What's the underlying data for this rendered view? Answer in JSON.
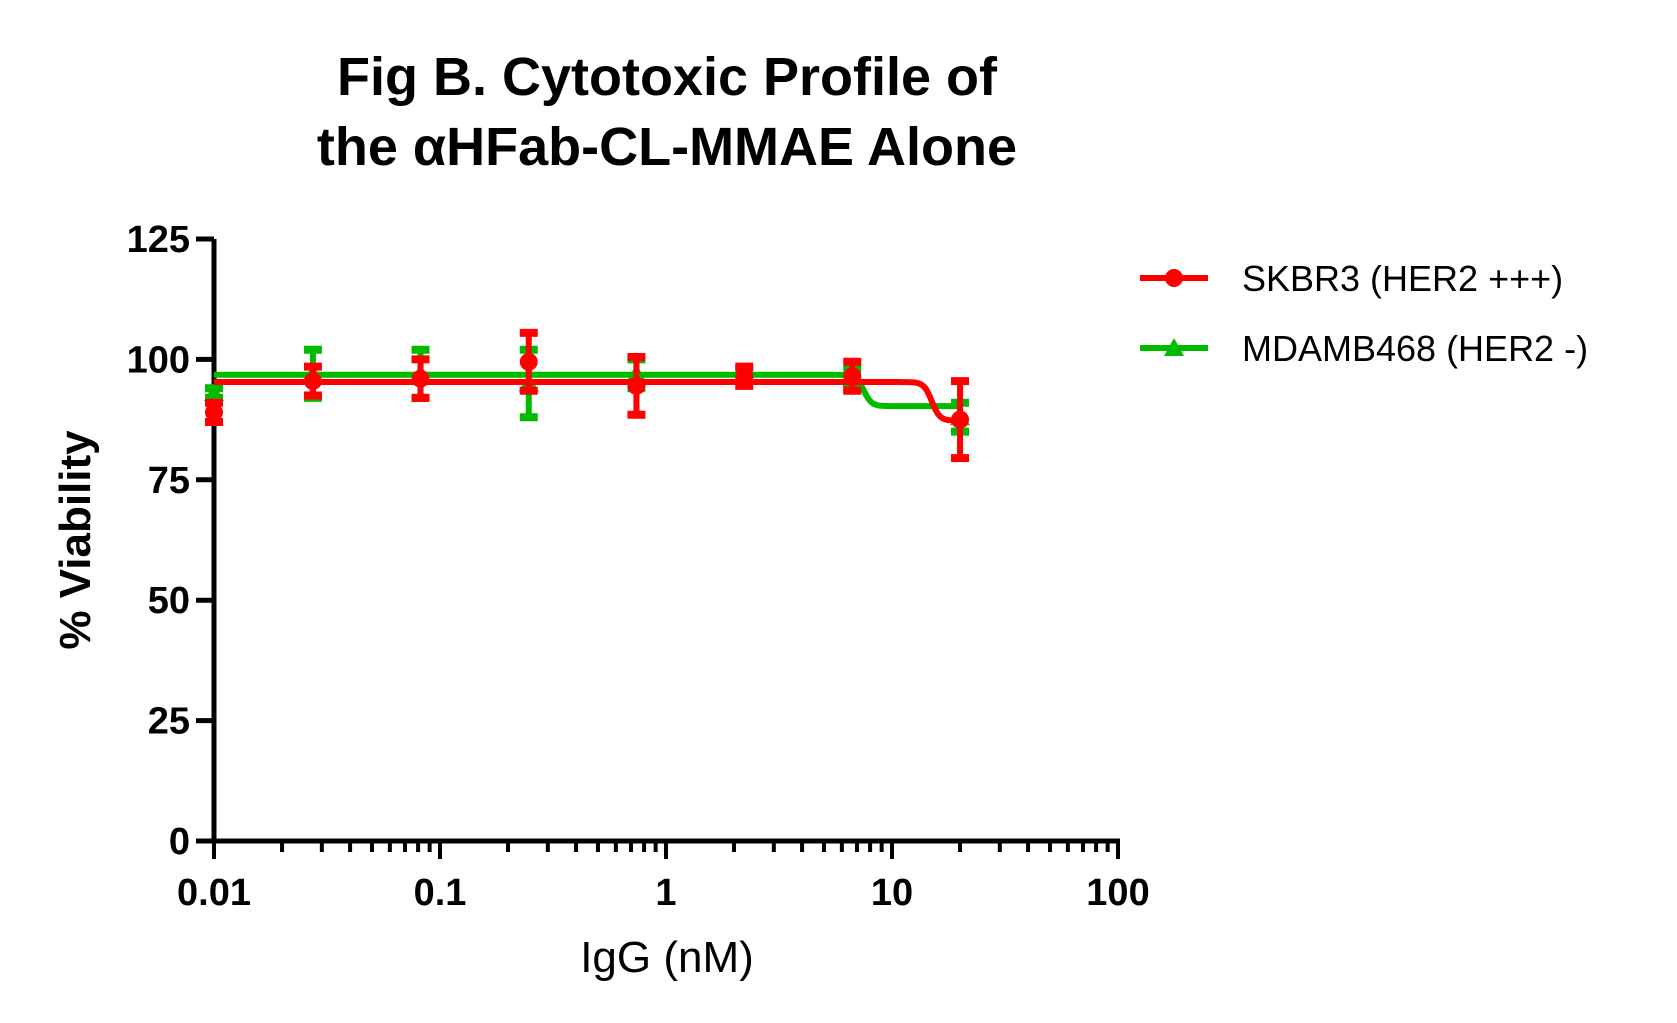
{
  "chart_data": {
    "type": "scatter",
    "title_line1": "Fig B. Cytotoxic Profile of",
    "title_line2": "the αHFab-CL-MMAE Alone",
    "xlabel": "IgG (nM)",
    "ylabel": "% Viability",
    "xscale": "log",
    "xlim": [
      0.01,
      100
    ],
    "ylim": [
      0,
      125
    ],
    "xticks": [
      "0.01",
      "0.1",
      "1",
      "10",
      "100"
    ],
    "yticks": [
      "0",
      "25",
      "50",
      "75",
      "100",
      "125"
    ],
    "legend_position": "right",
    "x": [
      0.01,
      0.0274,
      0.082,
      0.247,
      0.74,
      2.22,
      6.67,
      20
    ],
    "series": [
      {
        "name": "SKBR3 (HER2 +++)",
        "color": "#ff0000",
        "marker": "circle",
        "values": [
          89,
          95.5,
          96,
          99.5,
          94.5,
          96.5,
          96.5,
          87.5
        ],
        "errors": [
          2,
          3,
          4,
          6,
          6,
          2,
          3,
          8
        ],
        "fit": {
          "top": 95.3,
          "bottom": 87.3,
          "ec50": 15
        }
      },
      {
        "name": "MDAMB468 (HER2 -)",
        "color": "#00bb00",
        "marker": "triangle",
        "values": [
          93,
          97,
          97,
          95,
          97,
          97,
          96,
          88
        ],
        "errors": [
          1,
          5,
          5,
          7,
          3,
          1,
          2,
          3
        ],
        "fit": {
          "top": 96.8,
          "bottom": 90.3,
          "ec50": 7.5
        }
      }
    ]
  }
}
